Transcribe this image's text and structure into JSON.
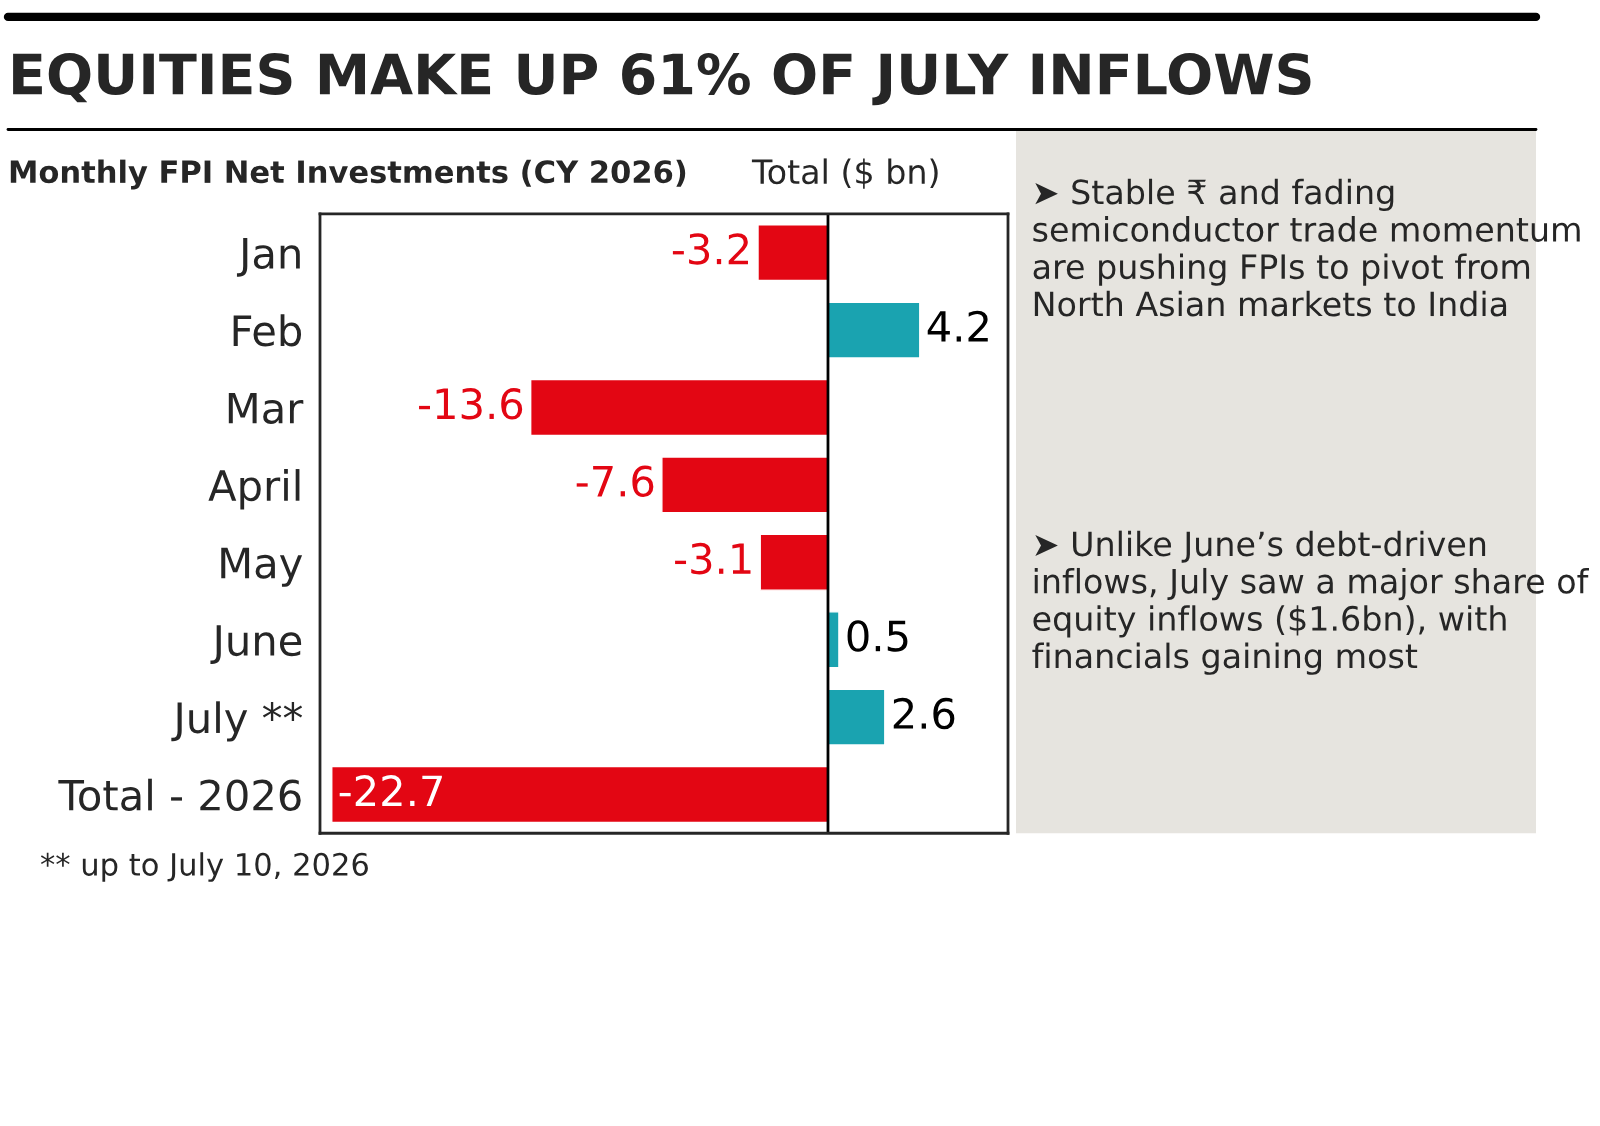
{
  "chart_data": {
    "type": "bar",
    "orientation": "horizontal",
    "title": "EQUITIES MAKE UP 61% OF JULY INFLOWS",
    "subtitle": "Monthly FPI Net Investments (CY 2026)",
    "xlabel": "Total ($ bn)",
    "categories": [
      "Jan",
      "Feb",
      "Mar",
      "April",
      "May",
      "June",
      "July **",
      "Total - 2026"
    ],
    "values": [
      -3.2,
      4.2,
      -13.6,
      -7.6,
      -3.1,
      0.5,
      2.6,
      -22.7
    ],
    "colors": [
      "#e30613",
      "#1aa3b0",
      "#e30613",
      "#e30613",
      "#e30613",
      "#1aa3b0",
      "#1aa3b0",
      "#e30613"
    ],
    "data_labels": true,
    "annotations": [
      "➤ Stable ₹ and fading semiconductor trade momentum are pushing FPIs to pivot from North Asian markets to India",
      "➤ Unlike June’s debt-driven inflows, July saw a major share of equity inflows ($1.6bn), with financials gaining most",
      "** up to July 10, 2026"
    ]
  }
}
